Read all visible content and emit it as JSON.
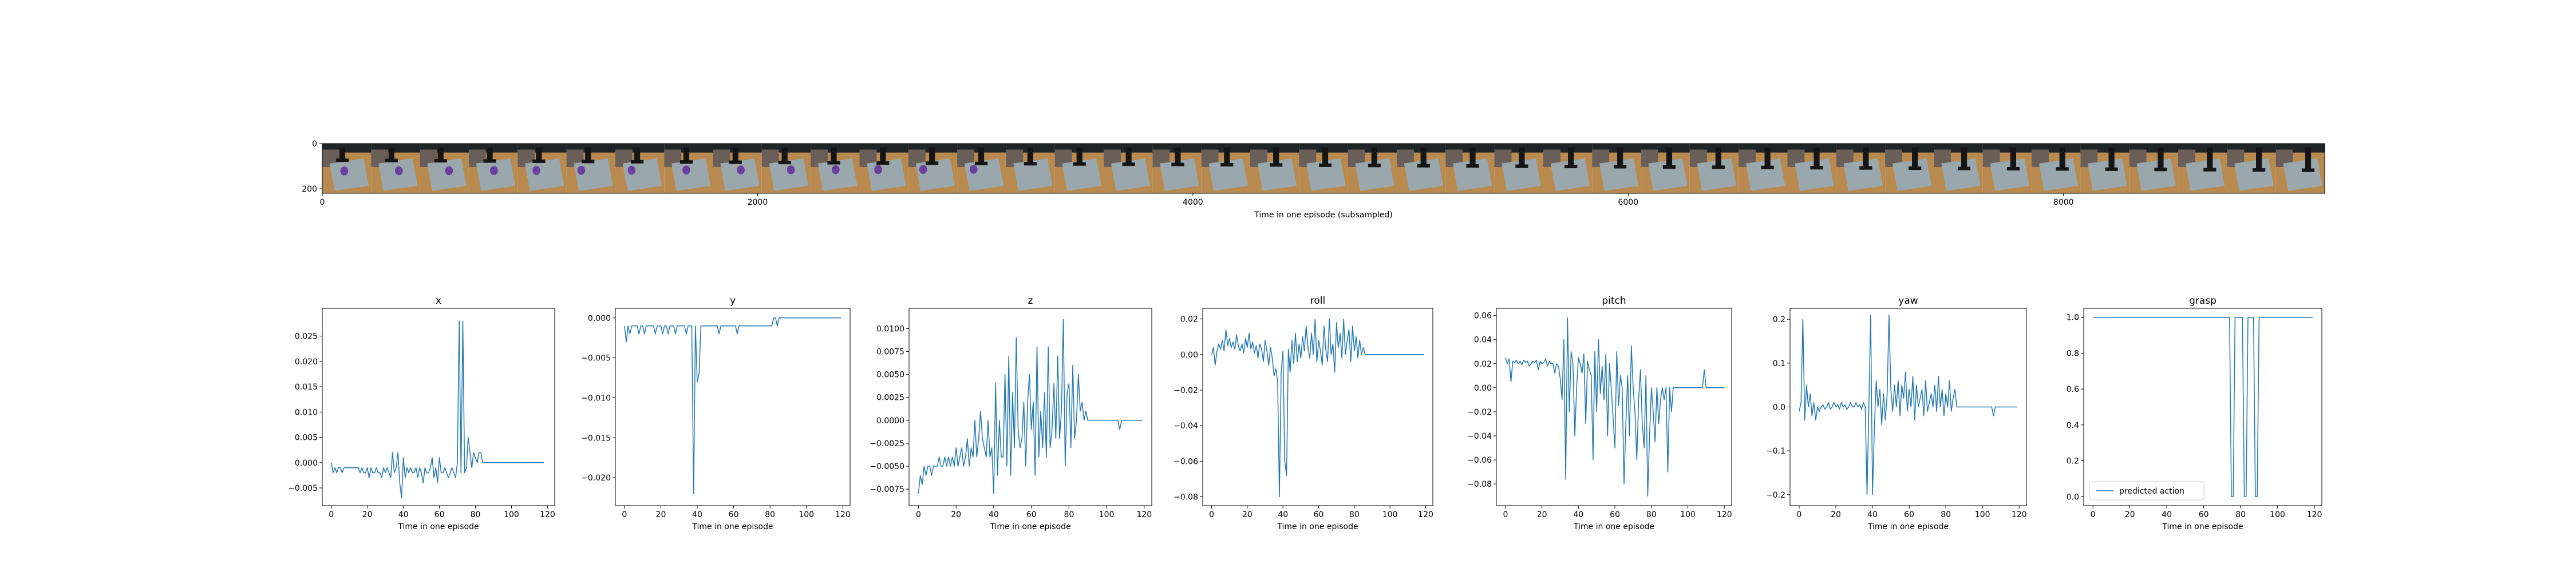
{
  "figure": {
    "filmstrip": {
      "xlabel": "Time in one episode (subsampled)",
      "x_ticks": [
        0,
        2000,
        4000,
        6000,
        8000
      ],
      "y_ticks": [
        0,
        200
      ],
      "frame_count": 41,
      "frame_colors": {
        "sky": "#1f2426",
        "wall": "#6a5e58",
        "tray": "#9aa8ad",
        "floor": "#b98a4f",
        "object": "#6b3fa0",
        "gripper": "#151515"
      }
    }
  },
  "chart_data": [
    {
      "type": "line",
      "title": "x",
      "xlabel": "Time in one episode",
      "x_ticks": [
        0,
        20,
        40,
        60,
        80,
        100,
        120
      ],
      "y_ticks": [
        -0.005,
        0.0,
        0.005,
        0.01,
        0.015,
        0.02,
        0.025
      ],
      "xlim": [
        -5,
        124
      ],
      "ylim": [
        -0.0085,
        0.0305
      ],
      "series": [
        {
          "color": "#1f77b4",
          "values": [
            0.0,
            -0.002,
            -0.001,
            -0.002,
            -0.001,
            -0.001,
            -0.002,
            -0.001,
            -0.001,
            -0.001,
            -0.001,
            -0.001,
            -0.001,
            -0.001,
            -0.001,
            -0.001,
            -0.002,
            -0.001,
            -0.002,
            -0.002,
            -0.001,
            -0.003,
            -0.001,
            -0.002,
            -0.002,
            -0.001,
            -0.002,
            -0.002,
            -0.003,
            -0.001,
            -0.002,
            -0.001,
            -0.002,
            -0.003,
            0.002,
            -0.002,
            -0.001,
            0.002,
            -0.004,
            -0.007,
            0.001,
            -0.003,
            -0.001,
            -0.002,
            -0.001,
            -0.002,
            -0.002,
            -0.001,
            -0.003,
            -0.001,
            -0.002,
            -0.004,
            -0.001,
            -0.002,
            -0.002,
            -0.001,
            0.001,
            -0.003,
            -0.001,
            -0.004,
            0.001,
            -0.002,
            -0.002,
            -0.001,
            -0.002,
            -0.003,
            -0.002,
            -0.001,
            -0.002,
            -0.003,
            0.0,
            0.028,
            -0.002,
            0.028,
            -0.002,
            -0.001,
            0.005,
            0.002,
            -0.001,
            0.002,
            0.001,
            0.0,
            0.002,
            0.002,
            0.0,
            0.0,
            0.0,
            0.0,
            0.0,
            0.0,
            0.0,
            0.0,
            0.0,
            0.0,
            0.0,
            0.0,
            0.0,
            0.0,
            0.0,
            0.0,
            0.0,
            0.0,
            0.0,
            0.0,
            0.0,
            0.0,
            0.0,
            0.0,
            0.0,
            0.0,
            0.0,
            0.0,
            0.0,
            0.0,
            0.0,
            0.0,
            0.0,
            0.0,
            0.0
          ]
        }
      ]
    },
    {
      "type": "line",
      "title": "y",
      "xlabel": "Time in one episode",
      "x_ticks": [
        0,
        20,
        40,
        60,
        80,
        100,
        120
      ],
      "y_ticks": [
        -0.02,
        -0.015,
        -0.01,
        -0.005,
        0.0
      ],
      "xlim": [
        -5,
        124
      ],
      "ylim": [
        -0.0235,
        0.0012
      ],
      "series": [
        {
          "color": "#1f77b4",
          "values": [
            -0.001,
            -0.003,
            -0.001,
            -0.002,
            -0.001,
            -0.001,
            -0.001,
            -0.001,
            -0.002,
            -0.001,
            -0.001,
            -0.002,
            -0.001,
            -0.001,
            -0.001,
            -0.001,
            -0.001,
            -0.002,
            -0.001,
            -0.001,
            -0.001,
            -0.002,
            -0.001,
            -0.001,
            -0.002,
            -0.001,
            -0.001,
            -0.001,
            -0.002,
            -0.001,
            -0.001,
            -0.001,
            -0.001,
            -0.001,
            -0.002,
            -0.001,
            -0.001,
            -0.001,
            -0.022,
            -0.001,
            -0.008,
            -0.007,
            -0.001,
            -0.001,
            -0.001,
            -0.001,
            -0.001,
            -0.001,
            -0.001,
            -0.001,
            -0.001,
            -0.001,
            -0.002,
            -0.001,
            -0.001,
            -0.001,
            -0.001,
            -0.001,
            -0.001,
            -0.001,
            -0.001,
            -0.001,
            -0.002,
            -0.001,
            -0.001,
            -0.001,
            -0.001,
            -0.001,
            -0.001,
            -0.001,
            -0.001,
            -0.001,
            -0.001,
            -0.001,
            -0.001,
            -0.001,
            -0.001,
            -0.001,
            -0.001,
            -0.001,
            -0.001,
            -0.001,
            0.0,
            0.0,
            -0.001,
            0.0,
            0.0,
            0.0,
            0.0,
            0.0,
            0.0,
            0.0,
            0.0,
            0.0,
            0.0,
            0.0,
            0.0,
            0.0,
            0.0,
            0.0,
            0.0,
            0.0,
            0.0,
            0.0,
            0.0,
            0.0,
            0.0,
            0.0,
            0.0,
            0.0,
            0.0,
            0.0,
            0.0,
            0.0,
            0.0,
            0.0,
            0.0,
            0.0,
            0.0,
            0.0
          ]
        }
      ]
    },
    {
      "type": "line",
      "title": "z",
      "xlabel": "Time in one episode",
      "x_ticks": [
        0,
        20,
        40,
        60,
        80,
        100,
        120
      ],
      "y_ticks": [
        -0.0075,
        -0.005,
        -0.0025,
        0.0,
        0.0025,
        0.005,
        0.0075,
        0.01
      ],
      "xlim": [
        -5,
        124
      ],
      "ylim": [
        -0.0093,
        0.0122
      ],
      "series": [
        {
          "color": "#1f77b4",
          "values": [
            -0.008,
            -0.006,
            -0.007,
            -0.005,
            -0.006,
            -0.005,
            -0.005,
            -0.006,
            -0.005,
            -0.005,
            -0.005,
            -0.004,
            -0.005,
            -0.005,
            -0.004,
            -0.005,
            -0.004,
            -0.005,
            -0.004,
            -0.005,
            -0.003,
            -0.005,
            -0.004,
            -0.003,
            -0.005,
            -0.004,
            -0.002,
            -0.005,
            -0.003,
            -0.004,
            0.0,
            -0.004,
            -0.002,
            0.001,
            -0.002,
            -0.003,
            -0.004,
            0.0,
            -0.004,
            -0.003,
            -0.008,
            0.004,
            -0.006,
            0.0,
            -0.004,
            -0.004,
            0.005,
            -0.005,
            0.007,
            -0.006,
            0.003,
            -0.003,
            0.009,
            -0.001,
            -0.003,
            -0.002,
            0.002,
            -0.005,
            0.002,
            0.005,
            -0.001,
            0.002,
            -0.006,
            0.008,
            -0.004,
            0.001,
            -0.003,
            0.003,
            -0.004,
            0.008,
            -0.003,
            -0.001,
            0.004,
            -0.002,
            0.007,
            -0.002,
            0.001,
            0.011,
            -0.005,
            0.003,
            0.004,
            -0.003,
            0.006,
            -0.002,
            0.0,
            0.005,
            0.001,
            0.002,
            0.0,
            0.001,
            0.0,
            0.0,
            0.0,
            0.0,
            0.0,
            0.0,
            0.0,
            0.0,
            0.0,
            0.0,
            0.0,
            0.0,
            0.0,
            0.0,
            0.0,
            0.0,
            0.0,
            -0.001,
            0.0,
            0.0,
            0.0,
            0.0,
            0.0,
            0.0,
            0.0,
            0.0,
            0.0,
            0.0,
            0.0,
            0.0
          ]
        }
      ]
    },
    {
      "type": "line",
      "title": "roll",
      "xlabel": "Time in one episode",
      "x_ticks": [
        0,
        20,
        40,
        60,
        80,
        100,
        120
      ],
      "y_ticks": [
        -0.08,
        -0.06,
        -0.04,
        -0.02,
        0.0,
        0.02
      ],
      "xlim": [
        -5,
        124
      ],
      "ylim": [
        -0.085,
        0.026
      ],
      "series": [
        {
          "color": "#1f77b4",
          "values": [
            0.0,
            0.004,
            -0.006,
            0.002,
            0.006,
            0.003,
            0.008,
            0.002,
            0.014,
            0.005,
            0.009,
            0.004,
            0.007,
            0.003,
            0.011,
            0.005,
            0.002,
            0.006,
            0.001,
            0.009,
            0.004,
            0.012,
            0.003,
            0.007,
            0.001,
            0.005,
            -0.002,
            0.006,
            0.003,
            -0.004,
            0.008,
            0.002,
            -0.006,
            0.004,
            -0.002,
            -0.012,
            -0.008,
            -0.015,
            -0.08,
            -0.01,
            0.002,
            -0.06,
            -0.068,
            0.003,
            -0.01,
            0.008,
            -0.005,
            0.012,
            -0.004,
            0.006,
            -0.002,
            0.01,
            0.002,
            0.016,
            0.004,
            -0.002,
            0.012,
            0.0,
            0.02,
            -0.004,
            0.008,
            0.002,
            -0.006,
            0.016,
            0.003,
            -0.004,
            0.02,
            0.0,
            0.006,
            -0.01,
            0.018,
            0.004,
            0.012,
            -0.002,
            0.02,
            0.0,
            0.008,
            0.014,
            -0.004,
            0.016,
            0.002,
            0.01,
            -0.002,
            0.008,
            0.0,
            0.004,
            0.0,
            0.0,
            0.0,
            0.0,
            0.0,
            0.0,
            0.0,
            0.0,
            0.0,
            0.0,
            0.0,
            0.0,
            0.0,
            0.0,
            0.0,
            0.0,
            0.0,
            0.0,
            0.0,
            0.0,
            0.0,
            0.0,
            0.0,
            0.0,
            0.0,
            0.0,
            0.0,
            0.0,
            0.0,
            0.0,
            0.0,
            0.0,
            0.0,
            0.0
          ]
        }
      ]
    },
    {
      "type": "line",
      "title": "pitch",
      "xlabel": "Time in one episode",
      "x_ticks": [
        0,
        20,
        40,
        60,
        80,
        100,
        120
      ],
      "y_ticks": [
        -0.08,
        -0.06,
        -0.04,
        -0.02,
        0.0,
        0.02,
        0.04,
        0.06
      ],
      "xlim": [
        -5,
        124
      ],
      "ylim": [
        -0.098,
        0.066
      ],
      "series": [
        {
          "color": "#1f77b4",
          "values": [
            0.025,
            0.02,
            0.024,
            0.005,
            0.022,
            0.021,
            0.023,
            0.02,
            0.022,
            0.019,
            0.023,
            0.021,
            0.022,
            0.018,
            0.02,
            0.022,
            0.021,
            0.023,
            0.015,
            0.022,
            0.02,
            0.021,
            0.024,
            0.018,
            0.022,
            0.02,
            0.02,
            0.012,
            0.02,
            0.018,
            0.008,
            -0.01,
            0.04,
            -0.076,
            0.058,
            -0.02,
            0.03,
            0.02,
            -0.04,
            0.0,
            0.025,
            0.02,
            0.012,
            0.028,
            -0.03,
            0.022,
            0.015,
            0.01,
            -0.06,
            0.03,
            -0.02,
            0.04,
            -0.005,
            0.018,
            -0.01,
            0.028,
            -0.04,
            0.02,
            0.0,
            -0.025,
            -0.05,
            0.03,
            -0.015,
            0.01,
            0.0,
            -0.08,
            -0.03,
            0.01,
            -0.04,
            0.035,
            0.0,
            -0.02,
            -0.06,
            -0.01,
            0.015,
            -0.03,
            -0.05,
            0.01,
            -0.09,
            -0.04,
            0.0,
            -0.02,
            -0.045,
            0.0,
            -0.03,
            -0.01,
            0.0,
            -0.01,
            0.0,
            -0.07,
            0.0,
            -0.02,
            0.0,
            0.0,
            0.0,
            0.0,
            0.0,
            0.0,
            0.0,
            0.0,
            0.0,
            0.0,
            0.0,
            0.0,
            0.0,
            0.0,
            0.0,
            0.0,
            0.0,
            0.015,
            0.0,
            0.0,
            0.0,
            0.0,
            0.0,
            0.0,
            0.0,
            0.0,
            0.0,
            0.0,
            0.0
          ]
        }
      ]
    },
    {
      "type": "line",
      "title": "yaw",
      "xlabel": "Time in one episode",
      "x_ticks": [
        0,
        20,
        40,
        60,
        80,
        100,
        120
      ],
      "y_ticks": [
        -0.2,
        -0.1,
        0.0,
        0.1,
        0.2
      ],
      "xlim": [
        -5,
        124
      ],
      "ylim": [
        -0.225,
        0.225
      ],
      "series": [
        {
          "color": "#1f77b4",
          "values": [
            -0.01,
            0.01,
            0.2,
            -0.03,
            0.05,
            0.0,
            0.03,
            -0.02,
            0.01,
            -0.03,
            0.0,
            -0.01,
            0.0,
            0.005,
            -0.005,
            0.0,
            0.01,
            -0.005,
            0.0,
            0.01,
            0.0,
            0.005,
            -0.005,
            0.01,
            0.0,
            0.005,
            -0.005,
            0.0,
            0.01,
            0.0,
            0.0,
            0.01,
            0.0,
            0.005,
            -0.005,
            0.01,
            0.0,
            -0.2,
            0.0,
            0.21,
            -0.2,
            -0.05,
            0.06,
            0.0,
            0.04,
            -0.04,
            0.03,
            -0.03,
            0.03,
            0.21,
            0.04,
            -0.01,
            0.05,
            0.0,
            0.06,
            -0.02,
            0.05,
            0.02,
            0.08,
            -0.01,
            0.04,
            0.0,
            0.07,
            -0.03,
            0.05,
            0.0,
            0.02,
            0.04,
            -0.02,
            0.06,
            -0.01,
            0.01,
            0.03,
            0.0,
            0.05,
            -0.01,
            0.07,
            0.0,
            0.04,
            -0.02,
            0.03,
            0.0,
            0.06,
            -0.01,
            0.02,
            0.04,
            0.0,
            0.0,
            0.0,
            0.0,
            0.0,
            0.0,
            0.0,
            0.0,
            0.0,
            0.0,
            0.0,
            0.0,
            0.0,
            0.0,
            0.0,
            0.0,
            0.0,
            0.0,
            0.0,
            0.0,
            -0.02,
            0.0,
            0.0,
            0.0,
            0.0,
            0.0,
            0.0,
            0.0,
            0.0,
            0.0,
            0.0,
            0.0,
            0.0,
            0.0
          ]
        }
      ]
    },
    {
      "type": "line",
      "title": "grasp",
      "xlabel": "Time in one episode",
      "x_ticks": [
        0,
        20,
        40,
        60,
        80,
        100,
        120
      ],
      "y_ticks": [
        0.0,
        0.2,
        0.4,
        0.6,
        0.8,
        1.0
      ],
      "xlim": [
        -5,
        124
      ],
      "ylim": [
        -0.05,
        1.05
      ],
      "legend": {
        "position": "lower-left",
        "entries": [
          "predicted action"
        ]
      },
      "series": [
        {
          "name": "predicted action",
          "color": "#1f77b4",
          "values": [
            1,
            1,
            1,
            1,
            1,
            1,
            1,
            1,
            1,
            1,
            1,
            1,
            1,
            1,
            1,
            1,
            1,
            1,
            1,
            1,
            1,
            1,
            1,
            1,
            1,
            1,
            1,
            1,
            1,
            1,
            1,
            1,
            1,
            1,
            1,
            1,
            1,
            1,
            1,
            1,
            1,
            1,
            1,
            1,
            1,
            1,
            1,
            1,
            1,
            1,
            1,
            1,
            1,
            1,
            1,
            1,
            1,
            1,
            1,
            1,
            1,
            1,
            1,
            1,
            1,
            1,
            1,
            1,
            1,
            1,
            1,
            1,
            1,
            1,
            1,
            0,
            0,
            1,
            1,
            1,
            1,
            1,
            0,
            0,
            1,
            1,
            1,
            1,
            0,
            0,
            1,
            1,
            1,
            1,
            1,
            1,
            1,
            1,
            1,
            1,
            1,
            1,
            1,
            1,
            1,
            1,
            1,
            1,
            1,
            1,
            1,
            1,
            1,
            1,
            1,
            1,
            1,
            1,
            1,
            1
          ]
        }
      ]
    }
  ]
}
